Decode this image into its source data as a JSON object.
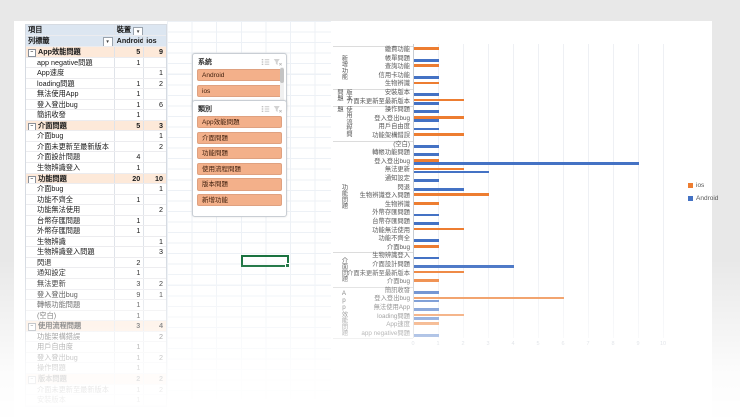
{
  "pivot": {
    "header": {
      "item_label": "項目",
      "device_label": "裝置",
      "row_label": "列標籤",
      "col_android": "Android",
      "col_ios": "ios"
    },
    "rows": [
      {
        "label": "App效能問題",
        "android": "5",
        "ios": "9",
        "type": "group"
      },
      {
        "label": "app negative問題",
        "android": "1",
        "ios": "",
        "type": "item"
      },
      {
        "label": "App速度",
        "android": "",
        "ios": "1",
        "type": "item"
      },
      {
        "label": "loading問題",
        "android": "1",
        "ios": "2",
        "type": "item"
      },
      {
        "label": "無法使用App",
        "android": "1",
        "ios": "",
        "type": "item"
      },
      {
        "label": "登入登出bug",
        "android": "1",
        "ios": "6",
        "type": "item"
      },
      {
        "label": "簡訊收發",
        "android": "1",
        "ios": "",
        "type": "item"
      },
      {
        "label": "介面問題",
        "android": "5",
        "ios": "3",
        "type": "group"
      },
      {
        "label": "介面bug",
        "android": "",
        "ios": "1",
        "type": "item"
      },
      {
        "label": "介面未更新至最新版本",
        "android": "",
        "ios": "2",
        "type": "item"
      },
      {
        "label": "介面設計問題",
        "android": "4",
        "ios": "",
        "type": "item"
      },
      {
        "label": "生物辨識登入",
        "android": "1",
        "ios": "",
        "type": "item"
      },
      {
        "label": "功能問題",
        "android": "20",
        "ios": "10",
        "type": "group"
      },
      {
        "label": "介面bug",
        "android": "",
        "ios": "1",
        "type": "item"
      },
      {
        "label": "功能不齊全",
        "android": "1",
        "ios": "",
        "type": "item"
      },
      {
        "label": "功能無法使用",
        "android": "",
        "ios": "2",
        "type": "item"
      },
      {
        "label": "台幣存匯問題",
        "android": "1",
        "ios": "",
        "type": "item"
      },
      {
        "label": "外幣存匯問題",
        "android": "1",
        "ios": "",
        "type": "item"
      },
      {
        "label": "生物辨識",
        "android": "",
        "ios": "1",
        "type": "item"
      },
      {
        "label": "生物辨識登入問題",
        "android": "",
        "ios": "3",
        "type": "item"
      },
      {
        "label": "閃退",
        "android": "2",
        "ios": "",
        "type": "item"
      },
      {
        "label": "通知設定",
        "android": "1",
        "ios": "",
        "type": "item"
      },
      {
        "label": "無法更新",
        "android": "3",
        "ios": "2",
        "type": "item"
      },
      {
        "label": "登入登出bug",
        "android": "9",
        "ios": "1",
        "type": "item"
      },
      {
        "label": "轉帳功能問題",
        "android": "1",
        "ios": "",
        "type": "item"
      },
      {
        "label": "(空白)",
        "android": "1",
        "ios": "",
        "type": "item"
      },
      {
        "label": "使用流程問題",
        "android": "3",
        "ios": "4",
        "type": "group"
      },
      {
        "label": "功能架構錯誤",
        "android": "",
        "ios": "2",
        "type": "item"
      },
      {
        "label": "用戶自由度",
        "android": "1",
        "ios": "",
        "type": "item"
      },
      {
        "label": "登入登出bug",
        "android": "1",
        "ios": "2",
        "type": "item"
      },
      {
        "label": "操作問題",
        "android": "1",
        "ios": "",
        "type": "item"
      },
      {
        "label": "版本問題",
        "android": "2",
        "ios": "2",
        "type": "group"
      },
      {
        "label": "介面未更新至最新版本",
        "android": "1",
        "ios": "2",
        "type": "item"
      },
      {
        "label": "安裝版本",
        "android": "1",
        "ios": "",
        "type": "item"
      }
    ]
  },
  "slicers": [
    {
      "title": "系統",
      "items": [
        {
          "label": "Android"
        },
        {
          "label": "ios"
        }
      ]
    },
    {
      "title": "類別",
      "items": [
        {
          "label": "App效能問題"
        },
        {
          "label": "介面問題"
        },
        {
          "label": "功能問題"
        },
        {
          "label": "使用流程問題"
        },
        {
          "label": "版本問題"
        },
        {
          "label": "新增功能"
        }
      ]
    }
  ],
  "chart_data": {
    "type": "bar",
    "orientation": "horizontal",
    "title": "",
    "xlabel": "",
    "ylabel": "",
    "xlim": [
      0,
      10
    ],
    "xticks": [
      0,
      1,
      2,
      3,
      4,
      5,
      6,
      7,
      8,
      9,
      10
    ],
    "grid": true,
    "legend_position": "right",
    "series": [
      {
        "name": "ios",
        "color": "#ED7D31"
      },
      {
        "name": "Android",
        "color": "#4472C4"
      }
    ],
    "groups": [
      {
        "name": "新增功能",
        "items": [
          {
            "label": "繳費功能",
            "android": 0,
            "ios": 1
          },
          {
            "label": "帳單問題",
            "android": 1,
            "ios": 0
          },
          {
            "label": "查詢功能",
            "android": 0,
            "ios": 1
          },
          {
            "label": "信用卡功能",
            "android": 1,
            "ios": 0
          },
          {
            "label": "生物辨識",
            "android": 0,
            "ios": 1
          }
        ]
      },
      {
        "name": "版本問題",
        "items": [
          {
            "label": "安裝版本",
            "android": 1,
            "ios": 0
          },
          {
            "label": "介面未更新至最新版本",
            "android": 1,
            "ios": 2
          }
        ]
      },
      {
        "name": "使用流程問題",
        "items": [
          {
            "label": "操作問題",
            "android": 1,
            "ios": 0
          },
          {
            "label": "登入登出bug",
            "android": 1,
            "ios": 2
          },
          {
            "label": "用戶自由度",
            "android": 1,
            "ios": 0
          },
          {
            "label": "功能架構錯誤",
            "android": 0,
            "ios": 2
          }
        ]
      },
      {
        "name": "功能問題",
        "items": [
          {
            "label": "(空白)",
            "android": 1,
            "ios": 0
          },
          {
            "label": "轉帳功能問題",
            "android": 1,
            "ios": 0
          },
          {
            "label": "登入登出bug",
            "android": 9,
            "ios": 1
          },
          {
            "label": "無法更新",
            "android": 3,
            "ios": 2
          },
          {
            "label": "通知設定",
            "android": 1,
            "ios": 0
          },
          {
            "label": "閃退",
            "android": 2,
            "ios": 0
          },
          {
            "label": "生物辨識登入問題",
            "android": 0,
            "ios": 3
          },
          {
            "label": "生物辨識",
            "android": 0,
            "ios": 1
          },
          {
            "label": "外幣存匯問題",
            "android": 1,
            "ios": 0
          },
          {
            "label": "台幣存匯問題",
            "android": 1,
            "ios": 0
          },
          {
            "label": "功能無法使用",
            "android": 0,
            "ios": 2
          },
          {
            "label": "功能不齊全",
            "android": 1,
            "ios": 0
          },
          {
            "label": "介面bug",
            "android": 0,
            "ios": 1
          }
        ]
      },
      {
        "name": "介面問題",
        "items": [
          {
            "label": "生物辨識登入",
            "android": 1,
            "ios": 0
          },
          {
            "label": "介面設計問題",
            "android": 4,
            "ios": 0
          },
          {
            "label": "介面未更新至最新版本",
            "android": 0,
            "ios": 2
          },
          {
            "label": "介面bug",
            "android": 0,
            "ios": 1
          }
        ]
      },
      {
        "name": "App效能問題",
        "items": [
          {
            "label": "簡訊收發",
            "android": 1,
            "ios": 0
          },
          {
            "label": "登入登出bug",
            "android": 1,
            "ios": 6
          },
          {
            "label": "無法使用App",
            "android": 1,
            "ios": 0
          },
          {
            "label": "loading問題",
            "android": 1,
            "ios": 2
          },
          {
            "label": "App速度",
            "android": 0,
            "ios": 1
          },
          {
            "label": "app negative問題",
            "android": 1,
            "ios": 0
          }
        ]
      }
    ]
  },
  "icons": {
    "dropdown": "▼",
    "expander": "−"
  },
  "colors": {
    "android_series": "#4472C4",
    "ios_series": "#ED7D31",
    "pivot_header_fill": "#DCE6F1",
    "pivot_group_fill": "#FDE9D9",
    "slicer_item_fill": "#F3B08A",
    "selection_green": "#1B7340",
    "sheet_bg": "#FFFFFF",
    "canvas_bg": "#E8E8E8"
  }
}
